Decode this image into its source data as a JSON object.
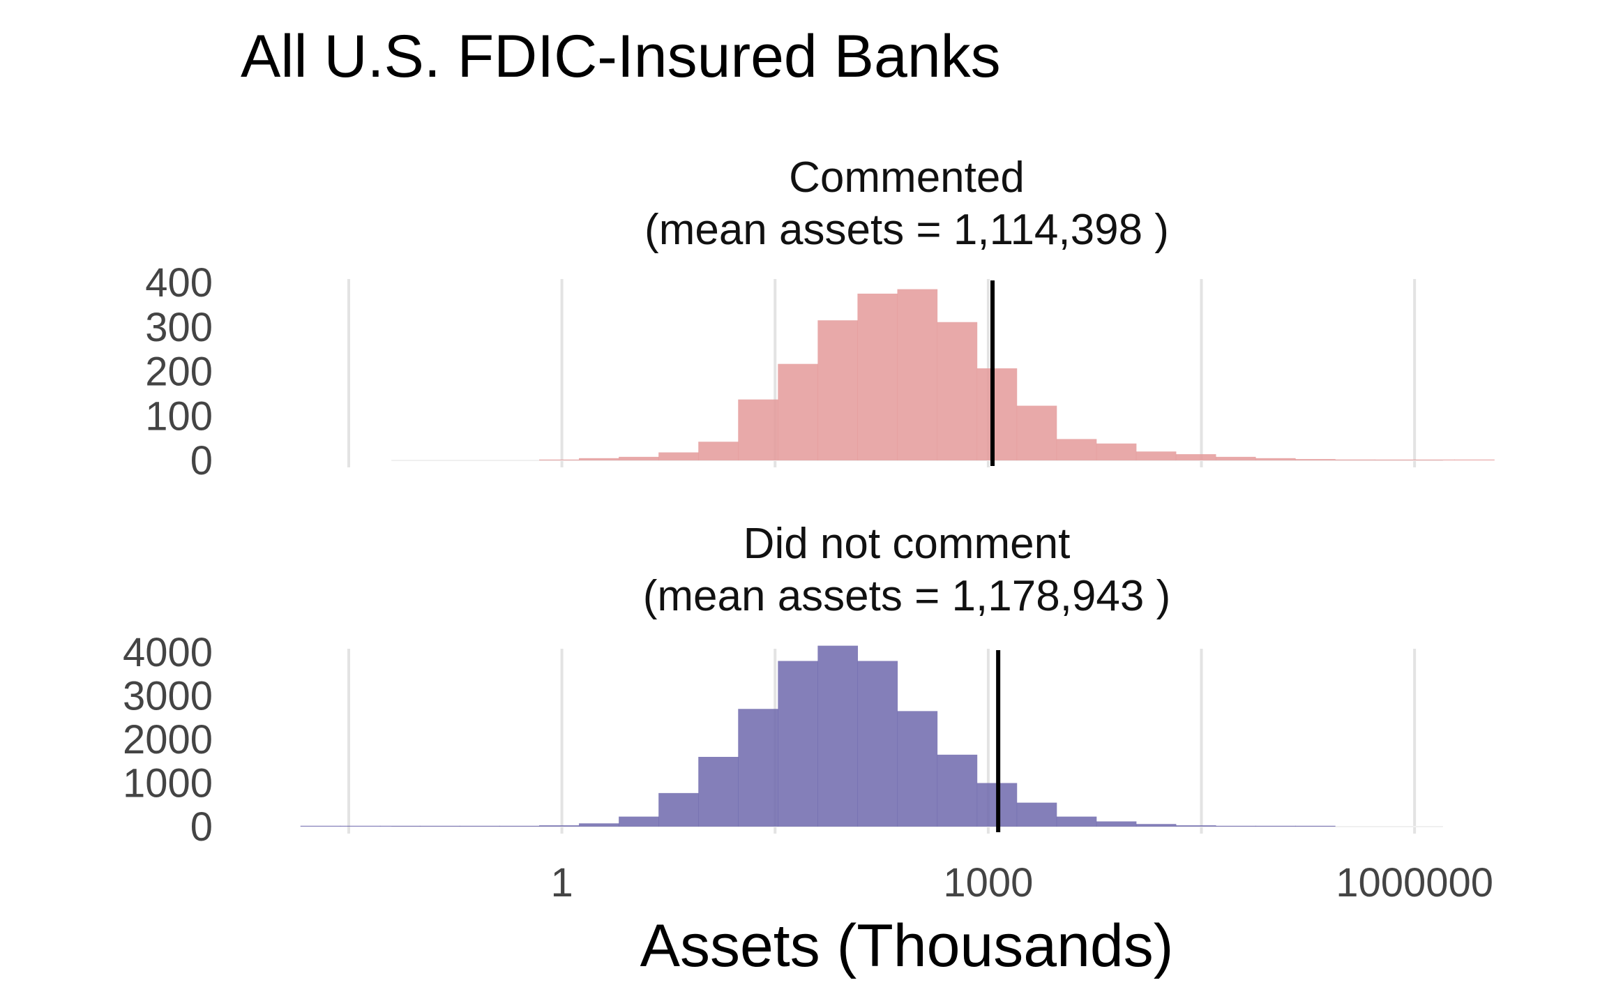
{
  "chart_data": {
    "type": "histogram",
    "title": "All U.S. FDIC-Insured Banks",
    "xlabel": "Assets (Thousands)",
    "x_scale": "log10",
    "x_ticks": [
      {
        "value": 1,
        "label": "1"
      },
      {
        "value": 1000,
        "label": "1000"
      },
      {
        "value": 1000000,
        "label": "1000000"
      }
    ],
    "x_gridlines_log10": [
      -1.5,
      0,
      1.5,
      3,
      4.5,
      6
    ],
    "x_range_log10": [
      -1.5,
      6.5
    ],
    "bin_width_log10": 0.28,
    "panels": [
      {
        "id": "commented",
        "title_line1": "Commented",
        "title_line2": "(mean assets = 1,114,398 )",
        "fill": "#e49a9a",
        "ylim": [
          0,
          400
        ],
        "y_ticks": [
          {
            "value": 0,
            "label": "0"
          },
          {
            "value": 100,
            "label": "100"
          },
          {
            "value": 200,
            "label": "200"
          },
          {
            "value": 300,
            "label": "300"
          },
          {
            "value": 400,
            "label": "400"
          }
        ],
        "mean_line_log10": 3.03,
        "bin_start_log10": -0.16,
        "counts": [
          1,
          5,
          8,
          18,
          42,
          137,
          217,
          315,
          375,
          385,
          311,
          207,
          123,
          48,
          38,
          20,
          14,
          8,
          5,
          3,
          2,
          1,
          1,
          1
        ]
      },
      {
        "id": "did-not-comment",
        "title_line1": "Did not comment",
        "title_line2": "(mean assets = 1,178,943 )",
        "fill": "#6e68ad",
        "ylim": [
          0,
          4000
        ],
        "y_ticks": [
          {
            "value": 0,
            "label": "0"
          },
          {
            "value": 1000,
            "label": "1000"
          },
          {
            "value": 2000,
            "label": "2000"
          },
          {
            "value": 3000,
            "label": "3000"
          },
          {
            "value": 4000,
            "label": "4000"
          }
        ],
        "mean_line_log10": 3.07,
        "bin_start_log10": -1.84,
        "counts": [
          1,
          1,
          1,
          3,
          8,
          15,
          30,
          75,
          230,
          770,
          1600,
          2700,
          3800,
          4150,
          3800,
          2650,
          1650,
          1000,
          550,
          230,
          120,
          60,
          30,
          15,
          8,
          5
        ]
      }
    ]
  }
}
